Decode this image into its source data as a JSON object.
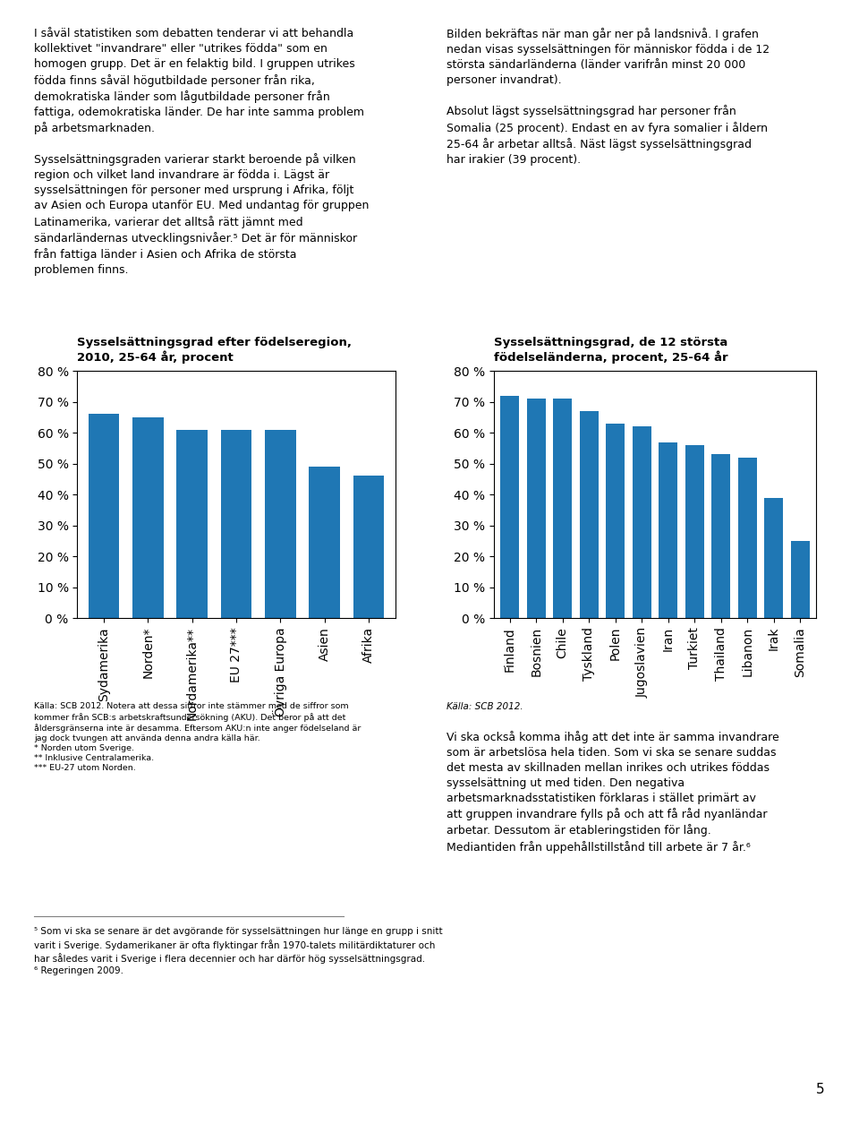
{
  "chart_data": [
    {
      "type": "bar",
      "title": "Sysselsättningsgrad efter födelseregion,\n2010, 25-64 år, procent",
      "categories": [
        "Sydamerika",
        "Norden*",
        "Nordamerika**",
        "EU 27***",
        "Övriga Europa",
        "Asien",
        "Afrika"
      ],
      "values": [
        66,
        65,
        61,
        61,
        61,
        49,
        46
      ],
      "ylim": [
        0,
        80
      ],
      "yticks": [
        {
          "value": 0,
          "label": "0 %"
        },
        {
          "value": 10,
          "label": "10 %"
        },
        {
          "value": 20,
          "label": "20 %"
        },
        {
          "value": 30,
          "label": "30 %"
        },
        {
          "value": 40,
          "label": "40 %"
        },
        {
          "value": 50,
          "label": "50 %"
        },
        {
          "value": 60,
          "label": "60 %"
        },
        {
          "value": 70,
          "label": "70 %"
        },
        {
          "value": 80,
          "label": "80 %"
        }
      ],
      "grid": false,
      "annotations": [
        "I såväl statistiken som debatten tenderar vi att behandla kollektivet \"invandrare\" eller \"utrikes födda\" som en homogen grupp. Det är en felaktig bild. I gruppen utrikes födda finns såväl högutbildade personer från rika, demokratiska länder som lågutbildade personer från fattiga, odemokratiska länder. De har inte samma problem på arbetsmarknaden.",
        "Sysselsättningsgraden varierar starkt beroende på vilken region och vilket land invandrare är födda i. Lägst är sysselsättningen för personer med ursprung i Afrika, följt av Asien och Europa utanför EU. Med undantag för gruppen Latinamerika, varierar det alltså rätt jämnt med sändarländernas utvecklingsnivåer.⁵ Det är för människor från fattiga länder i Asien och Afrika de största problemen finns.",
        "Källa: SCB 2012. Notera att dessa siffror inte stämmer med de siffror som\nkommer från SCB:s arbetskraftsundersökning (AKU). Det beror på att det\nåldersgränserna inte är desamma. Eftersom AKU:n inte anger födelseland är\njag dock tvungen att använda denna andra källa här.\n* Norden utom Sverige.\n** Inklusive Centralamerika.\n*** EU-27 utom Norden.",
        "⁵ Som vi ska se senare är det avgörande för sysselsättningen hur länge en grupp i snitt\nvarit i Sverige. Sydamerikaner är ofta flyktingar från 1970-talets militärdiktaturer och\nhar således varit i Sverige i flera decennier och har därför hög sysselsättningsgrad.\n⁶ Regeringen 2009."
      ]
    },
    {
      "type": "bar",
      "title": "Sysselsättningsgrad, de 12 största\nfödelseländerna, procent, 25-64 år",
      "categories": [
        "Finland",
        "Bosnien",
        "Chile",
        "Tyskland",
        "Polen",
        "Jugoslavien",
        "Iran",
        "Turkiet",
        "Thailand",
        "Libanon",
        "Irak",
        "Somalia"
      ],
      "values": [
        72,
        71,
        71,
        67,
        63,
        62,
        57,
        56,
        53,
        52,
        39,
        25
      ],
      "ylim": [
        0,
        80
      ],
      "yticks": [
        {
          "value": 0,
          "label": "0 %"
        },
        {
          "value": 10,
          "label": "10 %"
        },
        {
          "value": 20,
          "label": "20 %"
        },
        {
          "value": 30,
          "label": "30 %"
        },
        {
          "value": 40,
          "label": "40 %"
        },
        {
          "value": 50,
          "label": "50 %"
        },
        {
          "value": 60,
          "label": "60 %"
        },
        {
          "value": 70,
          "label": "70 %"
        },
        {
          "value": 80,
          "label": "80 %"
        }
      ],
      "grid": false,
      "annotations": [
        "Bilden bekräftas när man går ner på landsnivå. I grafen nedan visas sysselsättningen för människor födda i de 12 största sändarländerna (länder varifrån minst 20 000 personer invandrat).",
        "Absolut lägst sysselsättningsgrad har personer från Somalia (25 procent). Endast en av fyra somalier i åldern 25-64 år arbetar alltså. Näst lägst sysselsättningsgrad har irakier (39 procent).",
        "Källa: SCB 2012.",
        "Vi ska också komma ihåg att det inte är samma invandrare som är arbetslösa hela tiden. Som vi ska se senare suddas det mesta av skillnaden mellan inrikes och utrikes föddas sysselsättning ut med tiden. Den negativa arbetsmarknadsstatistiken förklaras i stället primärt av att gruppen invandrare fylls på och att få råd nyanländar arbetar. Dessutom är etableringstiden för lång. Mediantiden från uppehållstillstånd till arbete är 7 år.⁶",
        "5"
      ]
    }
  ]
}
